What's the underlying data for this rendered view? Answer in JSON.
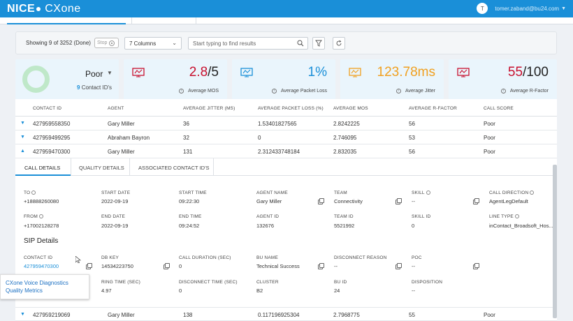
{
  "header": {
    "logo_text": "NICE",
    "logo_sub": "CXone",
    "avatar_initial": "T",
    "user_email": "tomer.zaband@bu24.com"
  },
  "toolbar": {
    "showing": "Showing 9 of 3252 (Done)",
    "stop_label": "Stop",
    "columns_value": "7 Columns",
    "search_placeholder": "Start typing to find results"
  },
  "summary": {
    "score": "Poor",
    "contact_count": "9",
    "contact_label": "Contact ID's"
  },
  "kpis": [
    {
      "value": "2.8",
      "suffix": "/5",
      "label": "Average MOS",
      "color": "#c8102e"
    },
    {
      "value": "1%",
      "suffix": "",
      "label": "Average Packet Loss",
      "color": "#1a8fd8"
    },
    {
      "value": "123.78ms",
      "suffix": "",
      "label": "Average Jitter",
      "color": "#f0a020"
    },
    {
      "value": "55",
      "suffix": "/100",
      "label": "Average R-Factor",
      "color": "#c8102e"
    }
  ],
  "table": {
    "headers": [
      "CONTACT ID",
      "AGENT",
      "AVERAGE JITTER (MS)",
      "AVERAGE PACKET LOSS (%)",
      "AVERAGE MOS",
      "AVERAGE R-FACTOR",
      "CALL SCORE"
    ],
    "rows": [
      [
        "427959558350",
        "Gary Miller",
        "36",
        "1.53401827565",
        "2.8242225",
        "56",
        "Poor"
      ],
      [
        "427959499295",
        "Abraham Bayron",
        "32",
        "0",
        "2.746095",
        "53",
        "Poor"
      ],
      [
        "427959470300",
        "Gary Miller",
        "131",
        "2.312433748184",
        "2.832035",
        "56",
        "Poor"
      ]
    ],
    "bottom_row": [
      "427959219069",
      "Gary Miller",
      "138",
      "0.117196925304",
      "2.7968775",
      "55",
      "Poor"
    ]
  },
  "details": {
    "tabs": [
      "CALL DETAILS",
      "QUALITY DETAILS",
      "ASSOCIATED CONTACT ID'S"
    ],
    "fields": {
      "to_label": "TO",
      "to": "+18888260080",
      "start_date_label": "START DATE",
      "start_date": "2022-09-19",
      "start_time_label": "START TIME",
      "start_time": "09:22:30",
      "agent_name_label": "AGENT NAME",
      "agent_name": "Gary Miller",
      "team_label": "TEAM",
      "team": "Connectivity",
      "skill_label": "SKILL",
      "skill": "--",
      "call_direction_label": "CALL DIRECTION",
      "call_direction": "AgentLegDefault",
      "from_label": "FROM",
      "from": "+17002128278",
      "end_date_label": "END DATE",
      "end_date": "2022-09-19",
      "end_time_label": "END TIME",
      "end_time": "09:24:52",
      "agent_id_label": "AGENT ID",
      "agent_id": "132676",
      "team_id_label": "TEAM ID",
      "team_id": "5521992",
      "skill_id_label": "SKILL ID",
      "skill_id": "0",
      "line_type_label": "LINE TYPE",
      "line_type": "inContact_Broadsoft_Hos..."
    },
    "sip_title": "SIP Details",
    "sip": {
      "contact_id_label": "CONTACT ID",
      "contact_id": "427959470300",
      "db_key_label": "DB KEY",
      "db_key": "14534223750",
      "call_duration_label": "CALL DURATION (SEC)",
      "call_duration": "0",
      "bu_name_label": "BU NAME",
      "bu_name": "Technical Success",
      "disconnect_reason_label": "DISCONNECT REASON",
      "disconnect_reason": "--",
      "poc_label": "POC",
      "poc": "--",
      "ring_time_label": "RING TIME (SEC)",
      "ring_time": "4.97",
      "disconnect_time_label": "DISCONNECT TIME (SEC)",
      "disconnect_time": "0",
      "cluster_label": "CLUSTER",
      "cluster": "B2",
      "bu_id_label": "BU ID",
      "bu_id": "24",
      "disposition_label": "DISPOSITION",
      "disposition": "--"
    }
  },
  "tooltip": {
    "line1": "CXone Voice Diagnostics",
    "line2": "Quality Metrics"
  }
}
